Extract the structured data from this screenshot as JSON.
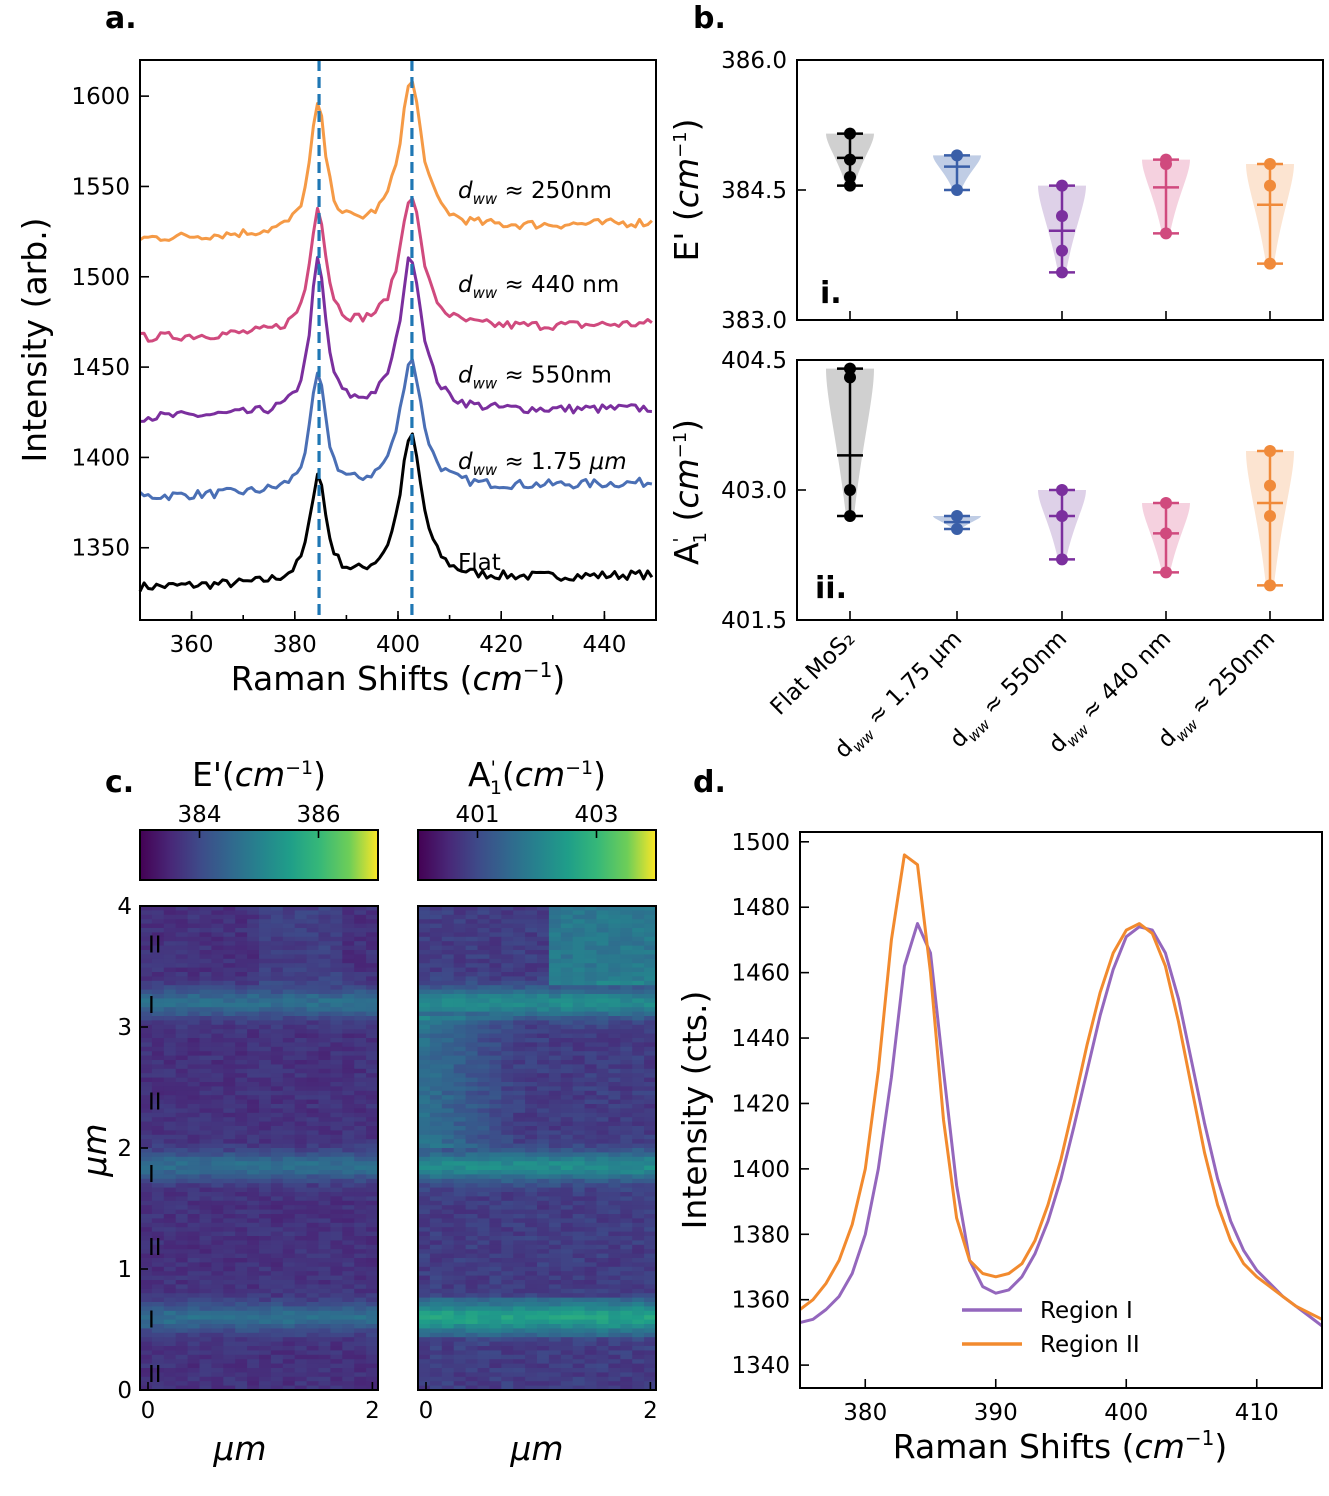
{
  "panel_labels": {
    "a": "a.",
    "b": "b.",
    "c": "c.",
    "d": "d."
  },
  "chart_data": [
    {
      "id": "a",
      "type": "line",
      "xlabel_pre": "Raman Shifts (",
      "xlabel_var": "cm",
      "xlabel_sup": "−1",
      "xlabel_post": ")",
      "ylabel": "Intensity (arb.)",
      "xlim": [
        350,
        450
      ],
      "ylim": [
        1310,
        1620
      ],
      "xticks": [
        "360",
        "380",
        "400",
        "420",
        "440"
      ],
      "yticks": [
        "1350",
        "1400",
        "1450",
        "1500",
        "1550",
        "1600"
      ],
      "vlines": [
        384.7,
        402.7
      ],
      "vline_color": "#1f77b4",
      "peaks": [
        384.5,
        402.5
      ],
      "series": [
        {
          "name": "Flat",
          "color": "#000000",
          "base": 1328,
          "end": 1335,
          "peak1": 60,
          "peak2": 80,
          "label": "Flat"
        },
        {
          "name": "d_ww ≈ 1.75 μm",
          "color": "#4a6fb5",
          "base": 1378,
          "end": 1386,
          "peak1": 64,
          "peak2": 72,
          "label_pre": "d",
          "label_sub": "ww",
          "label_post": " ≈ 1.75 ",
          "label_unit": "μm"
        },
        {
          "name": "d_ww ≈ 550nm",
          "color": "#7b2f9e",
          "base": 1422,
          "end": 1427,
          "peak1": 84,
          "peak2": 86,
          "label_pre": "d",
          "label_sub": "ww",
          "label_post": " ≈ 550nm",
          "label_unit": ""
        },
        {
          "name": "d_ww ≈ 440 nm",
          "color": "#d04a7e",
          "base": 1466,
          "end": 1474,
          "peak1": 70,
          "peak2": 75,
          "label_pre": "d",
          "label_sub": "ww",
          "label_post": " ≈ 440 nm",
          "label_unit": ""
        },
        {
          "name": "d_ww ≈ 250nm",
          "color": "#f59a46",
          "base": 1521,
          "end": 1530,
          "peak1": 70,
          "peak2": 82,
          "label_pre": "d",
          "label_sub": "ww",
          "label_post": " ≈ 250nm",
          "label_unit": ""
        }
      ]
    },
    {
      "id": "b_i",
      "type": "violin",
      "ylabel_pre": "E' (",
      "ylabel_var": "cm",
      "ylabel_sup": "−1",
      "ylabel_post": ")",
      "ylim": [
        383.0,
        386.0
      ],
      "yticks": [
        "383.0",
        "384.5",
        "386.0"
      ],
      "ytick_values": [
        383.0,
        384.5,
        386.0
      ],
      "panel_tag": "i.",
      "groups": [
        {
          "color": "#777777",
          "dark": "#000000",
          "points": [
            385.15,
            384.85,
            384.65,
            384.55
          ],
          "mean": 384.87
        },
        {
          "color": "#4a6fb5",
          "dark": "#3a5fa8",
          "points": [
            384.9,
            384.5
          ],
          "mean": 384.77
        },
        {
          "color": "#a07bbd",
          "dark": "#7b2f9e",
          "points": [
            384.55,
            384.2,
            383.8,
            383.55
          ],
          "mean": 384.03
        },
        {
          "color": "#e27aa3",
          "dark": "#d04a7e",
          "points": [
            384.85,
            384.8,
            384.0
          ],
          "mean": 384.53
        },
        {
          "color": "#f7b27a",
          "dark": "#f08a3a",
          "points": [
            384.8,
            384.55,
            383.65
          ],
          "mean": 384.33
        }
      ]
    },
    {
      "id": "b_ii",
      "type": "violin",
      "ylabel_pre": "A",
      "ylabel_sup": "'",
      "ylabel_sub": "1",
      "ylabel_mid": " (",
      "ylabel_var": "cm",
      "ylabel_sup2": "−1",
      "ylabel_post": ")",
      "ylim": [
        401.5,
        404.5
      ],
      "yticks": [
        "401.5",
        "403.0",
        "404.5"
      ],
      "ytick_values": [
        401.5,
        403.0,
        404.5
      ],
      "panel_tag": "ii.",
      "xticks_rot": [
        "Flat MoS₂",
        "d_ww ≈ 1.75 μm",
        "d_ww ≈ 550nm",
        "d_ww ≈ 440 nm",
        "d_ww ≈ 250nm"
      ],
      "groups": [
        {
          "color": "#777777",
          "dark": "#000000",
          "points": [
            404.4,
            404.3,
            403.0,
            402.7
          ],
          "mean": 403.4
        },
        {
          "color": "#4a6fb5",
          "dark": "#3a5fa8",
          "points": [
            402.7,
            402.55
          ],
          "mean": 402.63
        },
        {
          "color": "#a07bbd",
          "dark": "#7b2f9e",
          "points": [
            403.0,
            402.7,
            402.2
          ],
          "mean": 402.7
        },
        {
          "color": "#e27aa3",
          "dark": "#d04a7e",
          "points": [
            402.85,
            402.5,
            402.05
          ],
          "mean": 402.5
        },
        {
          "color": "#f7b27a",
          "dark": "#f08a3a",
          "points": [
            403.45,
            403.05,
            402.7,
            401.9
          ],
          "mean": 402.85
        }
      ]
    },
    {
      "id": "c_left",
      "type": "heatmap",
      "colorbar_title_pre": "E'(",
      "colorbar_title_var": "cm",
      "colorbar_title_sup": "−1",
      "colorbar_title_post": ")",
      "colorbar_range": [
        383,
        387
      ],
      "colorbar_ticks": [
        "384",
        "386"
      ],
      "colorbar_tick_values": [
        384,
        386
      ],
      "xlabel": "μm",
      "ylabel": "μm",
      "xticks": [
        "0",
        "2"
      ],
      "yticks": [
        "0",
        "1",
        "2",
        "3",
        "4"
      ],
      "xlim": [
        0,
        2.05
      ],
      "ylim": [
        0,
        4
      ],
      "region_marks": [
        {
          "y": 3.7,
          "label": "II",
          "color": "#f59a46"
        },
        {
          "y": 3.2,
          "label": "I",
          "color": "#b89ad8"
        },
        {
          "y": 2.4,
          "label": "II",
          "color": "#f59a46"
        },
        {
          "y": 1.8,
          "label": "I",
          "color": "#b89ad8"
        },
        {
          "y": 1.2,
          "label": "II",
          "color": "#f59a46"
        },
        {
          "y": 0.6,
          "label": "I",
          "color": "#b89ad8"
        },
        {
          "y": 0.15,
          "label": "II",
          "color": "#f59a46"
        }
      ]
    },
    {
      "id": "c_right",
      "type": "heatmap",
      "colorbar_title_pre": "A",
      "colorbar_title_sup": "'",
      "colorbar_title_sub": "1",
      "colorbar_title_mid": "(",
      "colorbar_title_var": "cm",
      "colorbar_title_sup2": "−1",
      "colorbar_title_post": ")",
      "colorbar_range": [
        400,
        404
      ],
      "colorbar_ticks": [
        "401",
        "403"
      ],
      "colorbar_tick_values": [
        401,
        403
      ],
      "xlabel": "μm",
      "xticks": [
        "0",
        "2"
      ],
      "xlim": [
        0,
        2.05
      ],
      "ylim": [
        0,
        4
      ]
    },
    {
      "id": "d",
      "type": "line",
      "xlabel_pre": "Raman Shifts (",
      "xlabel_var": "cm",
      "xlabel_sup": "−1",
      "xlabel_post": ")",
      "ylabel": "Intensity (cts.)",
      "xlim": [
        375,
        415
      ],
      "ylim": [
        1333,
        1503
      ],
      "xticks": [
        "380",
        "390",
        "400",
        "410"
      ],
      "xtick_values": [
        380,
        390,
        400,
        410
      ],
      "yticks": [
        "1340",
        "1360",
        "1380",
        "1400",
        "1420",
        "1440",
        "1460",
        "1480",
        "1500"
      ],
      "ytick_values": [
        1340,
        1360,
        1380,
        1400,
        1420,
        1440,
        1460,
        1480,
        1500
      ],
      "legend_position": "lower-center",
      "series": [
        {
          "name": "Region I",
          "color": "#9467bd",
          "x": [
            375,
            376,
            377,
            378,
            379,
            380,
            381,
            382,
            383,
            384,
            385,
            386,
            387,
            388,
            389,
            390,
            391,
            392,
            393,
            394,
            395,
            396,
            397,
            398,
            399,
            400,
            401,
            402,
            403,
            404,
            405,
            406,
            407,
            408,
            409,
            410,
            411,
            412,
            413,
            414,
            415
          ],
          "y": [
            1353,
            1354,
            1357,
            1361,
            1368,
            1380,
            1400,
            1428,
            1462,
            1475,
            1466,
            1430,
            1395,
            1372,
            1364,
            1362,
            1363,
            1367,
            1374,
            1384,
            1397,
            1413,
            1430,
            1447,
            1461,
            1471,
            1474,
            1473,
            1466,
            1452,
            1433,
            1414,
            1397,
            1384,
            1375,
            1369,
            1365,
            1361,
            1358,
            1355,
            1352
          ]
        },
        {
          "name": "Region II",
          "color": "#f28a2e",
          "x": [
            375,
            376,
            377,
            378,
            379,
            380,
            381,
            382,
            383,
            384,
            385,
            386,
            387,
            388,
            389,
            390,
            391,
            392,
            393,
            394,
            395,
            396,
            397,
            398,
            399,
            400,
            401,
            402,
            403,
            404,
            405,
            406,
            407,
            408,
            409,
            410,
            411,
            412,
            413,
            414,
            415
          ],
          "y": [
            1357,
            1360,
            1365,
            1372,
            1383,
            1400,
            1430,
            1470,
            1496,
            1493,
            1460,
            1415,
            1385,
            1372,
            1368,
            1367,
            1368,
            1371,
            1378,
            1389,
            1403,
            1420,
            1438,
            1454,
            1466,
            1473,
            1475,
            1472,
            1462,
            1445,
            1425,
            1405,
            1389,
            1378,
            1371,
            1367,
            1364,
            1361,
            1358,
            1356,
            1354
          ]
        }
      ]
    }
  ]
}
